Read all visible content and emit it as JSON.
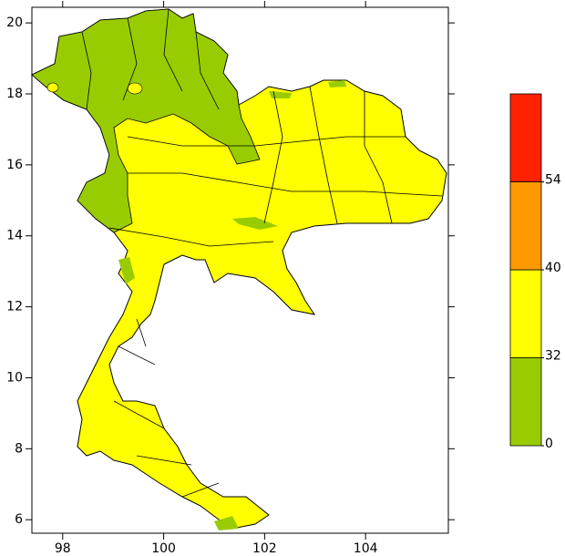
{
  "map": {
    "xlim": [
      97.39,
      105.64
    ],
    "ylim": [
      5.62,
      20.44
    ],
    "xticks": [
      98,
      100,
      102,
      104
    ],
    "yticks": [
      6,
      8,
      10,
      12,
      14,
      16,
      18,
      20
    ],
    "colorbar": {
      "ticks": [
        0,
        32,
        40,
        54
      ],
      "colors": [
        "#99cc00",
        "#ffff00",
        "#ff9900",
        "#ff2200"
      ]
    }
  }
}
